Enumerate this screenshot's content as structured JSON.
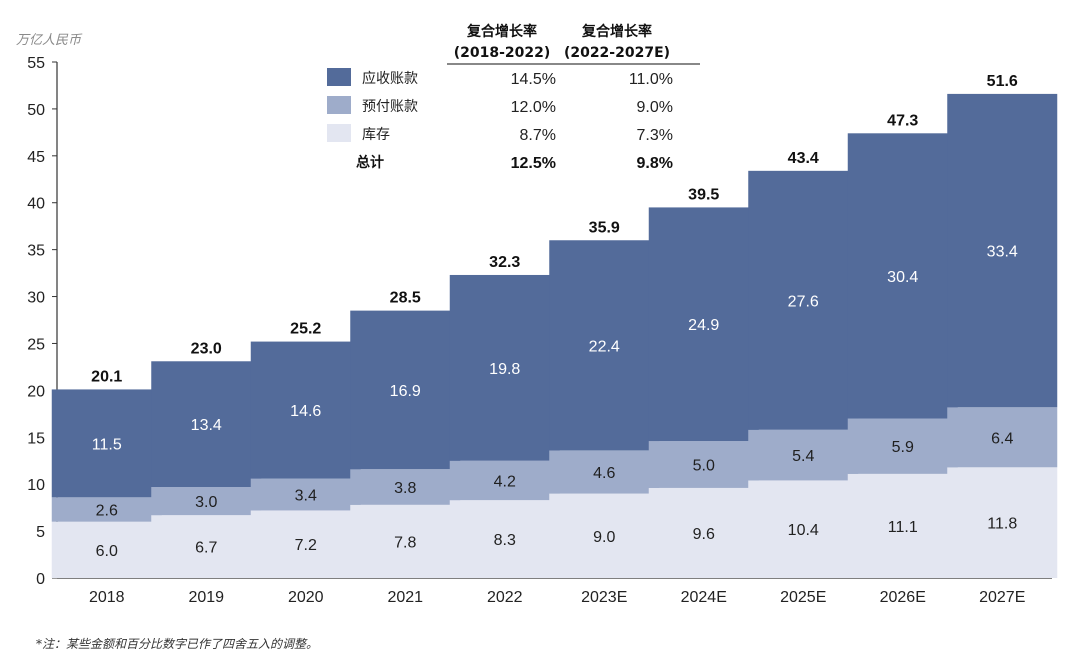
{
  "unit_label": "万亿人民币",
  "footnote": "*注：某些金额和百分比数字已作了四舍五入的调整。",
  "colors": {
    "receivables": "#536b9a",
    "prepayments": "#9eacca",
    "inventory": "#e3e6f1",
    "axis": "#333333"
  },
  "cagr_table": {
    "headers": [
      {
        "line1": "复合增长率",
        "line2": "(2018-2022)"
      },
      {
        "line1": "复合增长率",
        "line2": "(2022-2027E)"
      }
    ],
    "rows": [
      {
        "name": "应收账款",
        "v1": "14.5%",
        "v2": "11.0%",
        "swatch": "receivables"
      },
      {
        "name": "预付账款",
        "v1": "12.0%",
        "v2": "9.0%",
        "swatch": "prepayments"
      },
      {
        "name": "库存",
        "v1": "8.7%",
        "v2": "7.3%",
        "swatch": "inventory"
      },
      {
        "name": "总计",
        "v1": "12.5%",
        "v2": "9.8%",
        "swatch": null,
        "bold": true
      }
    ]
  },
  "chart_data": {
    "type": "bar",
    "stacked": true,
    "categories": [
      "2018",
      "2019",
      "2020",
      "2021",
      "2022",
      "2023E",
      "2024E",
      "2025E",
      "2026E",
      "2027E"
    ],
    "series": [
      {
        "name": "库存",
        "key": "inventory",
        "values": [
          6.0,
          6.7,
          7.2,
          7.8,
          8.3,
          9.0,
          9.6,
          10.4,
          11.1,
          11.8
        ]
      },
      {
        "name": "预付账款",
        "key": "prepayments",
        "values": [
          2.6,
          3.0,
          3.4,
          3.8,
          4.2,
          4.6,
          5.0,
          5.4,
          5.9,
          6.4
        ]
      },
      {
        "name": "应收账款",
        "key": "receivables",
        "values": [
          11.5,
          13.4,
          14.6,
          16.9,
          19.8,
          22.4,
          24.9,
          27.6,
          30.4,
          33.4
        ]
      }
    ],
    "totals": [
      20.1,
      23.0,
      25.2,
      28.5,
      32.3,
      35.9,
      39.5,
      43.4,
      47.3,
      51.6
    ],
    "ylim": [
      0,
      55
    ],
    "yticks": [
      0,
      5,
      10,
      15,
      20,
      25,
      30,
      35,
      40,
      45,
      50,
      55
    ],
    "xlabel": "",
    "ylabel": ""
  }
}
